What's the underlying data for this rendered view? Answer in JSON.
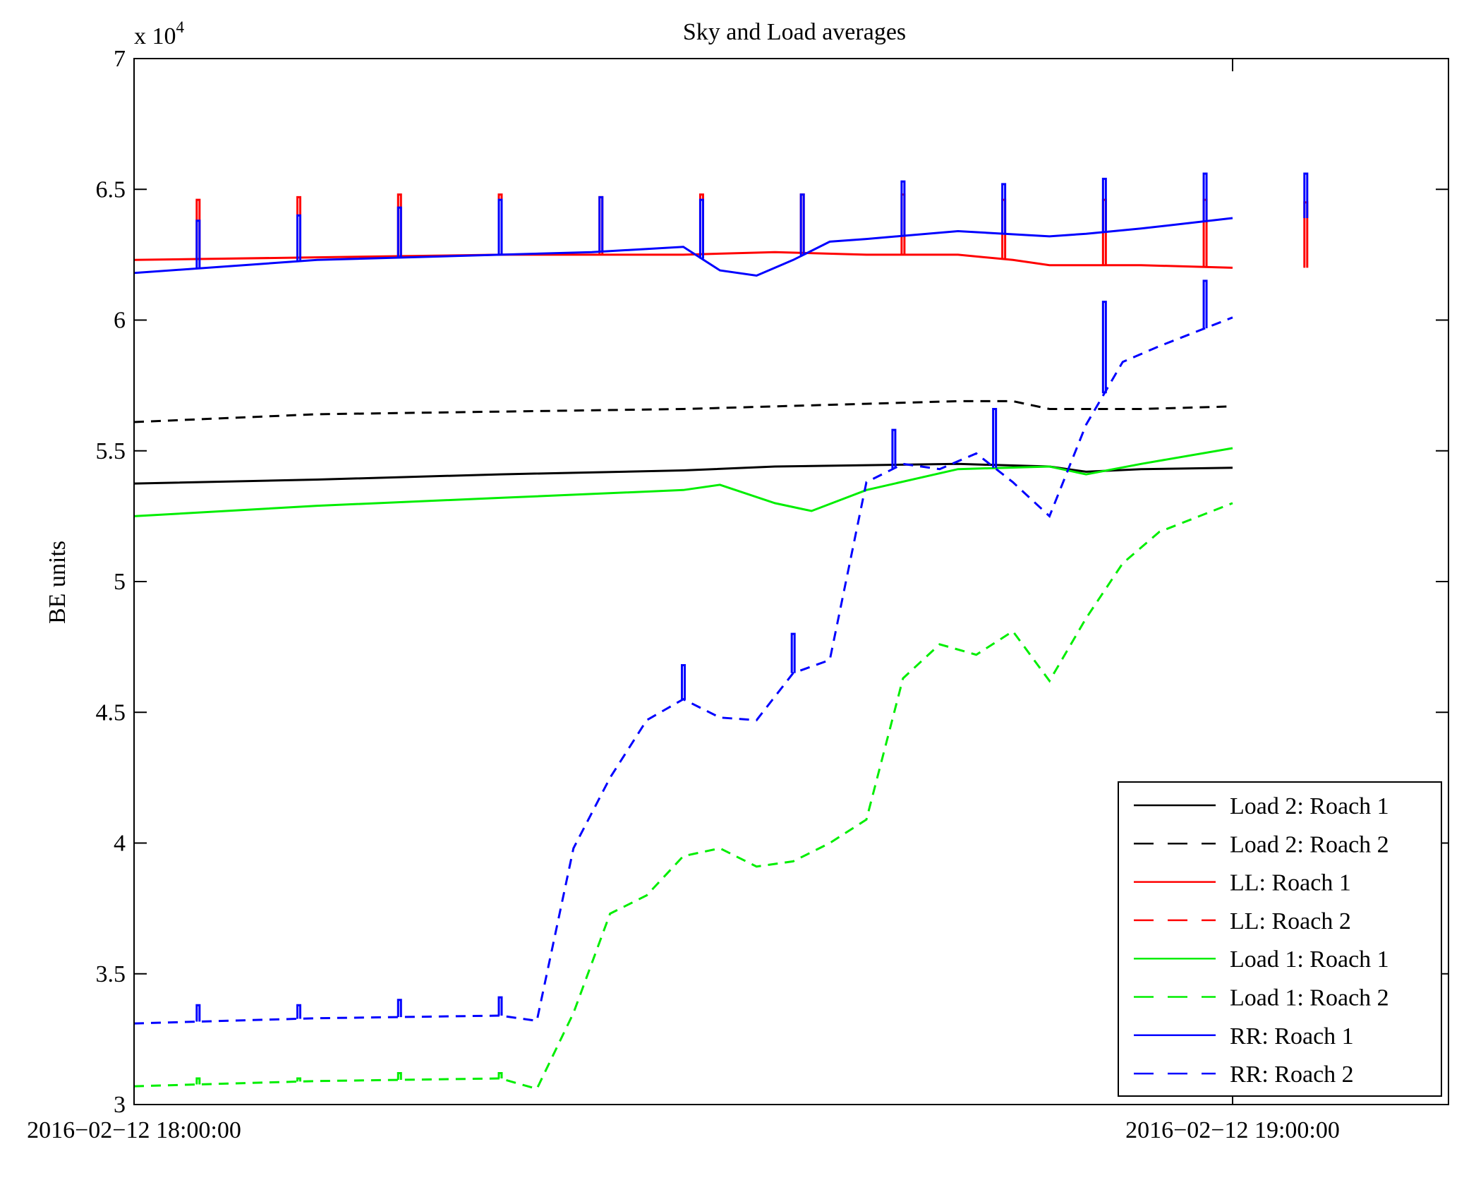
{
  "chart_data": {
    "type": "line",
    "title": "Sky and Load averages",
    "xlabel": "",
    "ylabel": "BE units",
    "y_exponent_label": "x 10",
    "y_exponent_power": "4",
    "x_unit": "minutes after 2016-02-12 18:00:00",
    "xlim": [
      0,
      72
    ],
    "ylim": [
      30000,
      70000
    ],
    "y_ticks": [
      30000,
      35000,
      40000,
      45000,
      50000,
      55000,
      60000,
      65000,
      70000
    ],
    "y_tick_labels": [
      "3",
      "3.5",
      "4",
      "4.5",
      "5",
      "5.5",
      "6",
      "6.5",
      "7"
    ],
    "x_ticks": [
      0,
      60
    ],
    "x_tick_labels": [
      "2016−02−12 18:00:00",
      "2016−02−12 19:00:00"
    ],
    "grid": false,
    "legend_position": "bottom-right",
    "series": [
      {
        "name": "Load 2: Roach 1",
        "color": "#000000",
        "dash": "solid",
        "x": [
          0,
          10,
          20,
          30,
          35,
          40,
          45,
          50,
          52,
          55,
          60
        ],
        "y": [
          53750,
          53900,
          54100,
          54250,
          54400,
          54450,
          54500,
          54400,
          54200,
          54300,
          54350
        ]
      },
      {
        "name": "Load 2: Roach 2",
        "color": "#000000",
        "dash": "dashed",
        "x": [
          0,
          10,
          20,
          30,
          35,
          40,
          45,
          48,
          50,
          55,
          60
        ],
        "y": [
          56100,
          56400,
          56500,
          56600,
          56700,
          56800,
          56900,
          56900,
          56600,
          56600,
          56700
        ]
      },
      {
        "name": "LL: Roach 1",
        "color": "#ff0000",
        "dash": "solid",
        "x": [
          0,
          10,
          20,
          30,
          35,
          40,
          45,
          48,
          50,
          55,
          60
        ],
        "y": [
          62300,
          62400,
          62500,
          62500,
          62600,
          62500,
          62500,
          62300,
          62100,
          62100,
          62000
        ],
        "spikes_x": [
          3.5,
          9,
          14.5,
          20,
          25.5,
          31,
          36.5,
          42,
          47.5,
          53,
          58.5,
          64
        ],
        "spikes_y": [
          64600,
          64700,
          64800,
          64800,
          64700,
          64800,
          64800,
          64800,
          64600,
          64600,
          64600,
          64500
        ]
      },
      {
        "name": "LL: Roach 2",
        "color": "#ff0000",
        "dash": "dashed",
        "x": [],
        "y": []
      },
      {
        "name": "Load 1: Roach 1",
        "color": "#00ee00",
        "dash": "solid",
        "x": [
          0,
          10,
          20,
          30,
          32,
          35,
          37,
          40,
          45,
          50,
          52,
          55,
          60
        ],
        "y": [
          52500,
          52900,
          53200,
          53500,
          53700,
          53000,
          52700,
          53500,
          54300,
          54400,
          54100,
          54500,
          55100
        ]
      },
      {
        "name": "Load 1: Roach 2",
        "color": "#00ee00",
        "dash": "dashed",
        "x": [
          0,
          10,
          20,
          22,
          24,
          26,
          28,
          30,
          32,
          34,
          36,
          38,
          40,
          42,
          44,
          46,
          48,
          50,
          52,
          54,
          56,
          60
        ],
        "y": [
          30700,
          30900,
          31000,
          30600,
          33500,
          37300,
          38000,
          39500,
          39800,
          39100,
          39300,
          40000,
          40900,
          46300,
          47600,
          47200,
          48100,
          46200,
          48600,
          50700,
          51900,
          53000
        ],
        "spikes_x": [
          3.5,
          9,
          14.5,
          20
        ],
        "spikes_y": [
          31000,
          31000,
          31200,
          31200
        ]
      },
      {
        "name": "RR: Roach 1",
        "color": "#0000ff",
        "dash": "solid",
        "x": [
          0,
          10,
          20,
          25,
          30,
          32,
          34,
          36,
          38,
          40,
          45,
          50,
          52,
          55,
          60
        ],
        "y": [
          61800,
          62300,
          62500,
          62600,
          62800,
          61900,
          61700,
          62300,
          63000,
          63100,
          63400,
          63200,
          63300,
          63500,
          63900
        ],
        "spikes_x": [
          3.5,
          9,
          14.5,
          20,
          25.5,
          31,
          36.5,
          42,
          47.5,
          53,
          58.5,
          64
        ],
        "spikes_y": [
          63800,
          64000,
          64300,
          64600,
          64700,
          64600,
          64800,
          65300,
          65200,
          65400,
          65600,
          65600
        ]
      },
      {
        "name": "RR: Roach 2",
        "color": "#0000ff",
        "dash": "dashed",
        "x": [
          0,
          10,
          20,
          22,
          24,
          26,
          28,
          30,
          32,
          34,
          36,
          38,
          40,
          42,
          44,
          46,
          48,
          50,
          52,
          54,
          56,
          60
        ],
        "y": [
          33100,
          33300,
          33400,
          33200,
          39800,
          42500,
          44700,
          45500,
          44800,
          44700,
          46500,
          47000,
          53800,
          54500,
          54300,
          54900,
          53800,
          52500,
          56000,
          58400,
          59000,
          60100
        ],
        "spikes_x": [
          3.5,
          9,
          14.5,
          20,
          30,
          36,
          41.5,
          47,
          53,
          58.5
        ],
        "spikes_y": [
          33800,
          33800,
          34000,
          34100,
          46800,
          48000,
          55800,
          56600,
          60700,
          61500
        ]
      }
    ]
  }
}
